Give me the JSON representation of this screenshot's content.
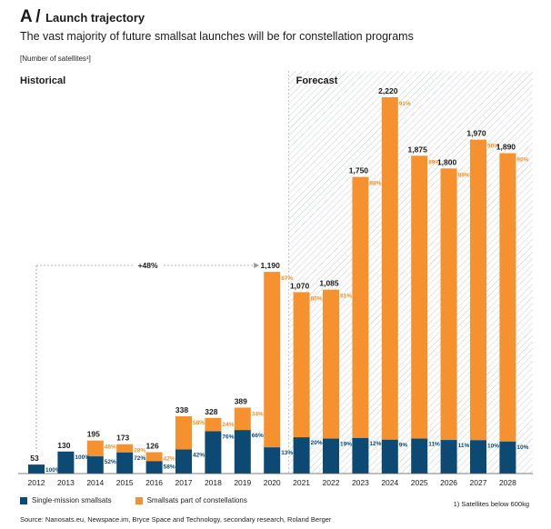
{
  "header": {
    "prefix": "A /",
    "title": "Launch trajectory",
    "subtitle": "The vast majority of future smallsat launches will be for constellation programs"
  },
  "unit_label": "[Number of satellites¹]",
  "section_labels": {
    "historical": "Historical",
    "forecast": "Forecast"
  },
  "growth_label": "+48%",
  "legend": {
    "single": "Single-mission smallsats",
    "constellation": "Smallsats part of constellations"
  },
  "footnote": "1) Satellites below 600kg",
  "source": "Source: Nanosats.eu, Newspace.im, Bryce Space and Technology, secondary research, Roland Berger",
  "colors": {
    "single": "#0d4a73",
    "constellation": "#f5922f",
    "forecast_hatch": "#c9ced3"
  },
  "chart_data": {
    "type": "bar",
    "stacked": true,
    "categories": [
      "2012",
      "2013",
      "2014",
      "2015",
      "2016",
      "2017",
      "2018",
      "2019",
      "2020",
      "2021",
      "2022",
      "2023",
      "2024",
      "2025",
      "2026",
      "2027",
      "2028"
    ],
    "totals": [
      53,
      130,
      195,
      173,
      126,
      338,
      328,
      389,
      1190,
      1070,
      1085,
      1750,
      2220,
      1875,
      1800,
      1970,
      1890
    ],
    "total_labels": [
      "53",
      "130",
      "195",
      "173",
      "126",
      "338",
      "328",
      "389",
      "1,190",
      "1,070",
      "1,085",
      "1,750",
      "2,220",
      "1,875",
      "1,800",
      "1,970",
      "1,890"
    ],
    "series": [
      {
        "name": "Single-mission smallsats",
        "percent_labels": [
          "100%",
          "100%",
          "52%",
          "72%",
          "58%",
          "42%",
          "76%",
          "66%",
          "13%",
          "20%",
          "19%",
          "12%",
          "9%",
          "11%",
          "11%",
          "10%",
          "10%"
        ]
      },
      {
        "name": "Smallsats part of constellations",
        "percent_labels": [
          "",
          "",
          "48%",
          "28%",
          "42%",
          "58%",
          "24%",
          "34%",
          "87%",
          "80%",
          "81%",
          "88%",
          "91%",
          "89%",
          "89%",
          "90%",
          "90%"
        ]
      }
    ],
    "forecast_start": "2021",
    "ylim": [
      0,
      2220
    ]
  }
}
